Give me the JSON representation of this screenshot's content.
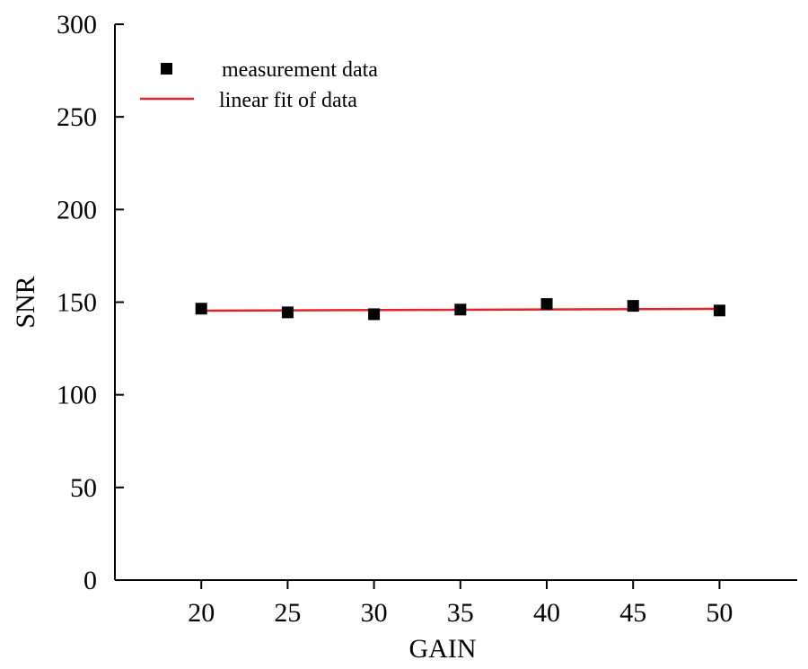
{
  "chart_data": {
    "type": "scatter",
    "xlabel": "GAIN",
    "ylabel": "SNR",
    "xlim": [
      15,
      54.5
    ],
    "ylim": [
      0,
      300
    ],
    "x_ticks": [
      "20",
      "25",
      "30",
      "35",
      "40",
      "45",
      "50"
    ],
    "y_ticks": [
      "0",
      "50",
      "100",
      "150",
      "200",
      "250",
      "300"
    ],
    "grid": false,
    "legend_position": "top-left",
    "series": [
      {
        "name": "measurement data",
        "kind": "scatter",
        "marker": "square",
        "color": "#000000",
        "x": [
          20,
          25,
          30,
          35,
          40,
          45,
          50
        ],
        "y": [
          146.5,
          144.5,
          143.5,
          146,
          149,
          148,
          145.5
        ]
      },
      {
        "name": "linear fit of data",
        "kind": "line",
        "color": "#e8212a",
        "x": [
          20,
          50
        ],
        "y": [
          145.4,
          146.4
        ]
      }
    ]
  }
}
